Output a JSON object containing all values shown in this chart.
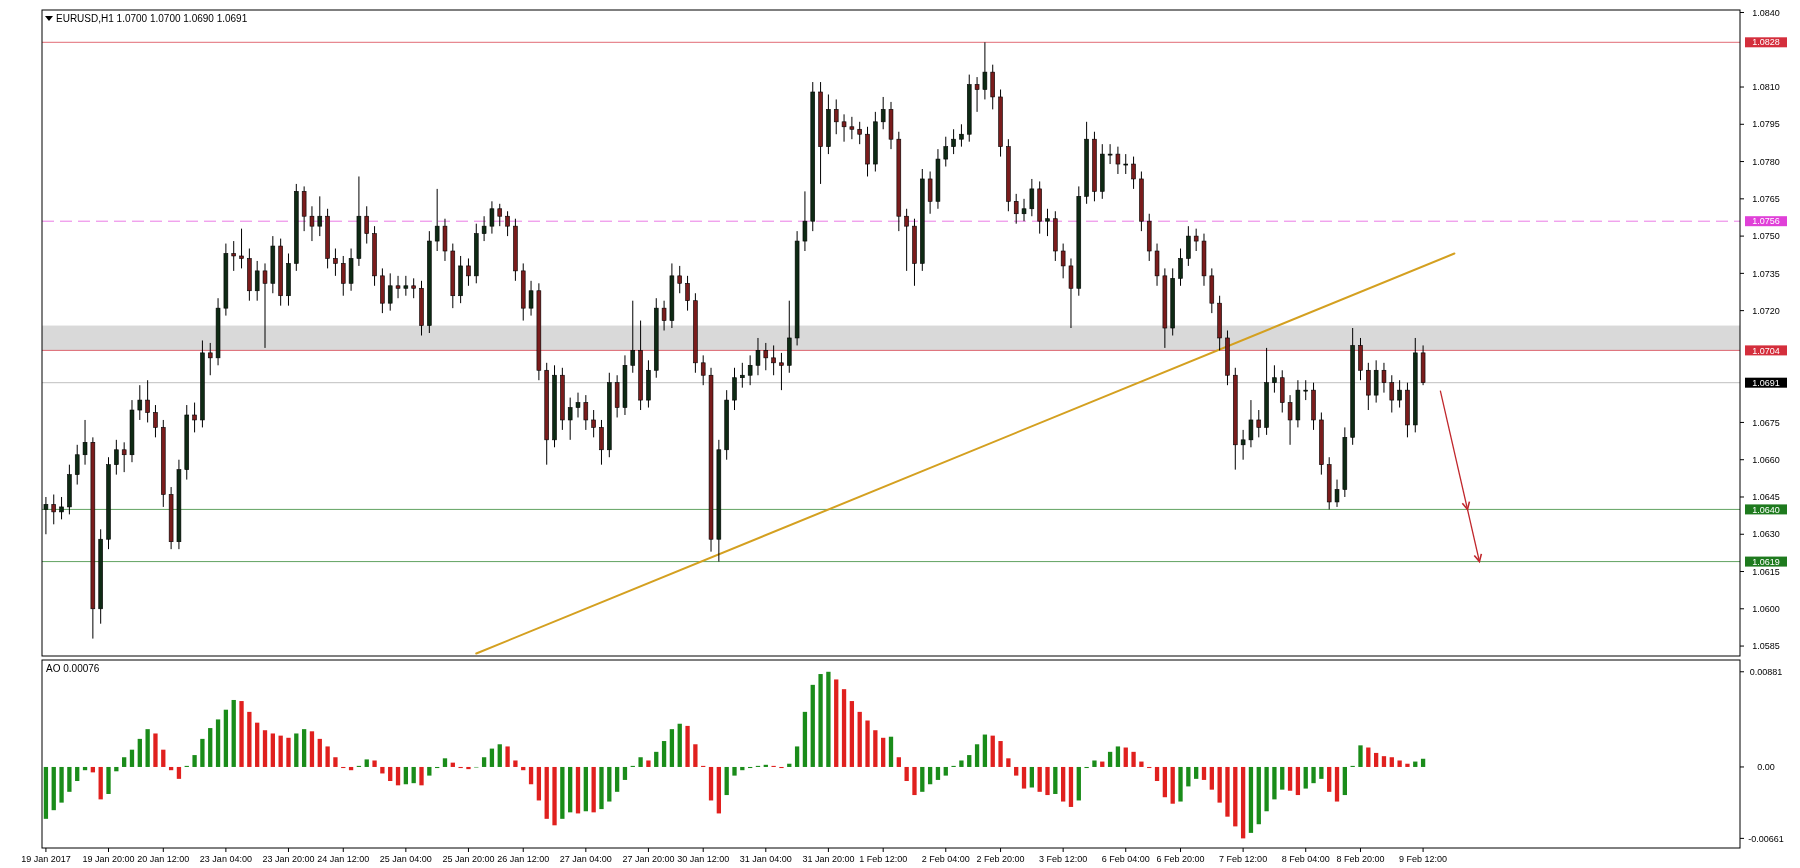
{
  "chart_data": [
    {
      "type": "candlestick",
      "title": "EURUSD,H1  1.0700 1.0700 1.0690 1.0691",
      "categories": [
        null,
        null,
        null,
        null,
        null,
        null,
        null,
        null,
        null,
        null,
        null,
        null,
        null,
        null,
        null,
        null,
        null,
        null,
        null,
        null,
        null,
        null,
        null,
        null,
        null,
        null,
        null,
        null,
        null,
        null,
        null,
        null,
        null,
        null,
        null,
        null,
        null,
        null,
        null,
        null,
        null,
        null,
        null,
        null,
        null,
        null,
        null,
        null,
        null,
        null,
        null,
        null,
        null,
        null,
        null,
        null,
        null,
        null,
        null,
        null,
        null,
        null,
        null,
        null,
        null,
        null,
        null,
        null,
        null,
        null,
        null,
        null,
        null,
        null,
        null,
        null,
        null,
        null,
        null,
        null,
        null,
        null,
        null,
        null,
        null,
        null,
        null,
        null,
        null,
        null,
        null,
        null,
        null,
        null,
        null,
        null,
        null,
        null,
        null,
        null,
        null,
        null,
        null,
        null,
        null,
        null,
        null,
        null,
        null,
        null,
        null,
        null,
        null,
        null,
        null,
        null,
        null,
        null,
        null,
        null,
        null,
        null,
        null,
        null,
        null,
        null,
        null,
        null,
        null,
        null,
        null,
        null,
        null,
        null,
        null,
        null,
        null,
        null,
        null,
        null,
        null,
        null,
        null,
        null,
        null,
        null,
        null,
        null,
        null,
        null,
        null,
        null,
        null,
        null,
        null,
        null,
        null,
        null,
        null,
        null,
        null,
        null,
        null,
        null,
        null,
        null,
        null,
        null,
        null,
        null,
        null,
        null,
        null,
        null,
        null,
        null,
        null,
        null,
        null,
        null,
        null,
        null,
        null,
        null,
        null,
        null,
        null,
        null,
        null,
        null,
        null,
        null,
        null,
        null,
        null,
        null,
        null,
        null,
        null,
        null,
        null,
        null,
        null,
        null,
        null,
        null,
        null,
        null,
        null,
        null,
        null,
        null,
        null,
        null,
        null,
        null,
        null
      ],
      "ohlc": [
        [
          1.064,
          1.0645,
          1.063,
          1.0642
        ],
        [
          1.0642,
          1.0646,
          1.0634,
          1.0639
        ],
        [
          1.0639,
          1.0645,
          1.0636,
          1.0641
        ],
        [
          1.0641,
          1.0658,
          1.0638,
          1.0654
        ],
        [
          1.0654,
          1.0666,
          1.065,
          1.0662
        ],
        [
          1.0662,
          1.0676,
          1.0658,
          1.0667
        ],
        [
          1.0667,
          1.0669,
          1.0588,
          1.06
        ],
        [
          1.06,
          1.0632,
          1.0594,
          1.0628
        ],
        [
          1.0628,
          1.0661,
          1.0624,
          1.0658
        ],
        [
          1.0658,
          1.0668,
          1.0654,
          1.0664
        ],
        [
          1.0664,
          1.0667,
          1.0655,
          1.0662
        ],
        [
          1.0662,
          1.0684,
          1.0659,
          1.068
        ],
        [
          1.068,
          1.069,
          1.0676,
          1.0684
        ],
        [
          1.0684,
          1.0692,
          1.0675,
          1.0679
        ],
        [
          1.0679,
          1.0682,
          1.0669,
          1.0673
        ],
        [
          1.0673,
          1.0676,
          1.0641,
          1.0646
        ],
        [
          1.0646,
          1.0649,
          1.0624,
          1.0627
        ],
        [
          1.0627,
          1.066,
          1.0624,
          1.0656
        ],
        [
          1.0656,
          1.0682,
          1.0652,
          1.0678
        ],
        [
          1.0678,
          1.0683,
          1.0671,
          1.0676
        ],
        [
          1.0676,
          1.0708,
          1.0673,
          1.0703
        ],
        [
          1.0703,
          1.0707,
          1.0694,
          1.0701
        ],
        [
          1.0701,
          1.0725,
          1.0698,
          1.0721
        ],
        [
          1.0721,
          1.0747,
          1.0718,
          1.0743
        ],
        [
          1.0743,
          1.0748,
          1.0736,
          1.0742
        ],
        [
          1.0742,
          1.0753,
          1.0737,
          1.0741
        ],
        [
          1.0741,
          1.0745,
          1.0724,
          1.0728
        ],
        [
          1.0728,
          1.074,
          1.0724,
          1.0736
        ],
        [
          1.0736,
          1.0739,
          1.0705,
          1.0731
        ],
        [
          1.0731,
          1.075,
          1.0727,
          1.0746
        ],
        [
          1.0746,
          1.0749,
          1.0722,
          1.0726
        ],
        [
          1.0726,
          1.0743,
          1.0722,
          1.0739
        ],
        [
          1.0739,
          1.0771,
          1.0736,
          1.0768
        ],
        [
          1.0768,
          1.077,
          1.0752,
          1.0758
        ],
        [
          1.0758,
          1.0762,
          1.0748,
          1.0754
        ],
        [
          1.0754,
          1.0766,
          1.075,
          1.0758
        ],
        [
          1.0758,
          1.0761,
          1.0737,
          1.0741
        ],
        [
          1.0741,
          1.0745,
          1.0734,
          1.0739
        ],
        [
          1.0739,
          1.0742,
          1.0726,
          1.0731
        ],
        [
          1.0731,
          1.0745,
          1.0728,
          1.0741
        ],
        [
          1.0741,
          1.0774,
          1.0738,
          1.0758
        ],
        [
          1.0758,
          1.0762,
          1.0747,
          1.0751
        ],
        [
          1.0751,
          1.0754,
          1.073,
          1.0734
        ],
        [
          1.0734,
          1.0737,
          1.0719,
          1.0723
        ],
        [
          1.0723,
          1.0735,
          1.072,
          1.073
        ],
        [
          1.073,
          1.0734,
          1.0725,
          1.0729
        ],
        [
          1.0729,
          1.0734,
          1.0726,
          1.073
        ],
        [
          1.073,
          1.0733,
          1.0725,
          1.0729
        ],
        [
          1.0729,
          1.0732,
          1.071,
          1.0714
        ],
        [
          1.0714,
          1.0752,
          1.0711,
          1.0748
        ],
        [
          1.0748,
          1.0769,
          1.0744,
          1.0754
        ],
        [
          1.0754,
          1.0757,
          1.074,
          1.0744
        ],
        [
          1.0744,
          1.0747,
          1.0721,
          1.0726
        ],
        [
          1.0726,
          1.0742,
          1.0723,
          1.0738
        ],
        [
          1.0738,
          1.0741,
          1.073,
          1.0734
        ],
        [
          1.0734,
          1.0755,
          1.0731,
          1.0751
        ],
        [
          1.0751,
          1.0758,
          1.0748,
          1.0754
        ],
        [
          1.0754,
          1.0764,
          1.0751,
          1.0761
        ],
        [
          1.0761,
          1.0763,
          1.0754,
          1.0758
        ],
        [
          1.0758,
          1.076,
          1.075,
          1.0754
        ],
        [
          1.0754,
          1.0757,
          1.0732,
          1.0736
        ],
        [
          1.0736,
          1.0739,
          1.0716,
          1.0721
        ],
        [
          1.0721,
          1.0732,
          1.0718,
          1.0728
        ],
        [
          1.0728,
          1.0731,
          1.0692,
          1.0696
        ],
        [
          1.0696,
          1.0699,
          1.0658,
          1.0668
        ],
        [
          1.0668,
          1.0698,
          1.0665,
          1.0694
        ],
        [
          1.0694,
          1.0697,
          1.0672,
          1.0676
        ],
        [
          1.0676,
          1.0685,
          1.0668,
          1.0681
        ],
        [
          1.0681,
          1.0687,
          1.0677,
          1.0683
        ],
        [
          1.0683,
          1.0686,
          1.0672,
          1.0676
        ],
        [
          1.0676,
          1.068,
          1.0669,
          1.0673
        ],
        [
          1.0673,
          1.0676,
          1.0658,
          1.0664
        ],
        [
          1.0664,
          1.0695,
          1.0661,
          1.0691
        ],
        [
          1.0691,
          1.0694,
          1.0677,
          1.0681
        ],
        [
          1.0681,
          1.0702,
          1.0678,
          1.0698
        ],
        [
          1.0698,
          1.0724,
          1.0695,
          1.0704
        ],
        [
          1.0704,
          1.0716,
          1.068,
          1.0684
        ],
        [
          1.0684,
          1.07,
          1.0681,
          1.0696
        ],
        [
          1.0696,
          1.0725,
          1.0693,
          1.0721
        ],
        [
          1.0721,
          1.0724,
          1.0712,
          1.0716
        ],
        [
          1.0716,
          1.0739,
          1.0713,
          1.0734
        ],
        [
          1.0734,
          1.0738,
          1.0727,
          1.0731
        ],
        [
          1.0731,
          1.0734,
          1.072,
          1.0724
        ],
        [
          1.0724,
          1.0727,
          1.0695,
          1.0699
        ],
        [
          1.0699,
          1.0702,
          1.069,
          1.0694
        ],
        [
          1.0694,
          1.0697,
          1.0623,
          1.0628
        ],
        [
          1.0628,
          1.0668,
          1.0619,
          1.0664
        ],
        [
          1.0664,
          1.0688,
          1.066,
          1.0684
        ],
        [
          1.0684,
          1.0697,
          1.068,
          1.0693
        ],
        [
          1.0693,
          1.0699,
          1.0689,
          1.0694
        ],
        [
          1.0694,
          1.0702,
          1.069,
          1.0698
        ],
        [
          1.0698,
          1.0709,
          1.0694,
          1.0704
        ],
        [
          1.0704,
          1.0707,
          1.0696,
          1.0701
        ],
        [
          1.0701,
          1.0706,
          1.0694,
          1.0699
        ],
        [
          1.0699,
          1.0703,
          1.0688,
          1.0698
        ],
        [
          1.0698,
          1.0724,
          1.0695,
          1.0709
        ],
        [
          1.0709,
          1.0752,
          1.0706,
          1.0748
        ],
        [
          1.0748,
          1.0768,
          1.0744,
          1.0756
        ],
        [
          1.0756,
          1.0812,
          1.0752,
          1.0808
        ],
        [
          1.0808,
          1.0812,
          1.0771,
          1.0786
        ],
        [
          1.0786,
          1.0807,
          1.0783,
          1.0801
        ],
        [
          1.0801,
          1.0805,
          1.0791,
          1.0796
        ],
        [
          1.0796,
          1.0799,
          1.0788,
          1.0794
        ],
        [
          1.0794,
          1.0798,
          1.0789,
          1.0793
        ],
        [
          1.0793,
          1.0796,
          1.0787,
          1.0791
        ],
        [
          1.0791,
          1.0794,
          1.0774,
          1.0779
        ],
        [
          1.0779,
          1.08,
          1.0776,
          1.0796
        ],
        [
          1.0796,
          1.0806,
          1.0793,
          1.0801
        ],
        [
          1.0801,
          1.0804,
          1.0785,
          1.0789
        ],
        [
          1.0789,
          1.0792,
          1.0752,
          1.0758
        ],
        [
          1.0758,
          1.0761,
          1.0736,
          1.0754
        ],
        [
          1.0754,
          1.0757,
          1.073,
          1.0739
        ],
        [
          1.0739,
          1.0777,
          1.0736,
          1.0773
        ],
        [
          1.0773,
          1.0776,
          1.0759,
          1.0764
        ],
        [
          1.0764,
          1.0785,
          1.0761,
          1.0781
        ],
        [
          1.0781,
          1.079,
          1.0778,
          1.0786
        ],
        [
          1.0786,
          1.0793,
          1.0783,
          1.0789
        ],
        [
          1.0789,
          1.0795,
          1.0786,
          1.0791
        ],
        [
          1.0791,
          1.0815,
          1.0788,
          1.0811
        ],
        [
          1.0811,
          1.0814,
          1.08,
          1.0809
        ],
        [
          1.0809,
          1.0828,
          1.0805,
          1.0816
        ],
        [
          1.0816,
          1.0819,
          1.0801,
          1.0806
        ],
        [
          1.0806,
          1.0809,
          1.0782,
          1.0786
        ],
        [
          1.0786,
          1.0789,
          1.076,
          1.0764
        ],
        [
          1.0764,
          1.0767,
          1.0755,
          1.0759
        ],
        [
          1.0759,
          1.0765,
          1.0756,
          1.0761
        ],
        [
          1.0761,
          1.0773,
          1.0758,
          1.0769
        ],
        [
          1.0769,
          1.0772,
          1.0751,
          1.0756
        ],
        [
          1.0756,
          1.0761,
          1.075,
          1.0757
        ],
        [
          1.0757,
          1.076,
          1.074,
          1.0744
        ],
        [
          1.0744,
          1.0747,
          1.0733,
          1.0738
        ],
        [
          1.0738,
          1.0741,
          1.0713,
          1.0729
        ],
        [
          1.0729,
          1.077,
          1.0726,
          1.0766
        ],
        [
          1.0766,
          1.0796,
          1.0763,
          1.0789
        ],
        [
          1.0789,
          1.0792,
          1.0764,
          1.0768
        ],
        [
          1.0768,
          1.0787,
          1.0765,
          1.0783
        ],
        [
          1.0783,
          1.0787,
          1.0779,
          1.0783
        ],
        [
          1.0783,
          1.0786,
          1.0775,
          1.0779
        ],
        [
          1.0779,
          1.0783,
          1.0775,
          1.0779
        ],
        [
          1.0779,
          1.0782,
          1.0769,
          1.0773
        ],
        [
          1.0773,
          1.0776,
          1.0752,
          1.0756
        ],
        [
          1.0756,
          1.0759,
          1.074,
          1.0744
        ],
        [
          1.0744,
          1.0747,
          1.073,
          1.0734
        ],
        [
          1.0734,
          1.0737,
          1.0705,
          1.0713
        ],
        [
          1.0713,
          1.0737,
          1.071,
          1.0733
        ],
        [
          1.0733,
          1.0745,
          1.073,
          1.0741
        ],
        [
          1.0741,
          1.0754,
          1.0738,
          1.075
        ],
        [
          1.075,
          1.0753,
          1.0744,
          1.0748
        ],
        [
          1.0748,
          1.0751,
          1.073,
          1.0734
        ],
        [
          1.0734,
          1.0737,
          1.0719,
          1.0723
        ],
        [
          1.0723,
          1.0726,
          1.0704,
          1.0709
        ],
        [
          1.0709,
          1.0712,
          1.069,
          1.0694
        ],
        [
          1.0694,
          1.0697,
          1.0656,
          1.0666
        ],
        [
          1.0666,
          1.0672,
          1.066,
          1.0668
        ],
        [
          1.0668,
          1.0684,
          1.0665,
          1.0676
        ],
        [
          1.0676,
          1.068,
          1.0669,
          1.0673
        ],
        [
          1.0673,
          1.0705,
          1.067,
          1.0691
        ],
        [
          1.0691,
          1.0698,
          1.0687,
          1.0693
        ],
        [
          1.0693,
          1.0696,
          1.0679,
          1.0683
        ],
        [
          1.0683,
          1.0686,
          1.0666,
          1.0676
        ],
        [
          1.0676,
          1.0692,
          1.0673,
          1.0688
        ],
        [
          1.0688,
          1.0692,
          1.0684,
          1.0688
        ],
        [
          1.0688,
          1.0691,
          1.0672,
          1.0676
        ],
        [
          1.0676,
          1.0679,
          1.0654,
          1.0658
        ],
        [
          1.0658,
          1.0661,
          1.064,
          1.0643
        ],
        [
          1.0643,
          1.0652,
          1.0641,
          1.0648
        ],
        [
          1.0648,
          1.0673,
          1.0645,
          1.0669
        ],
        [
          1.0669,
          1.0713,
          1.0666,
          1.0706
        ],
        [
          1.0706,
          1.0709,
          1.0692,
          1.0696
        ],
        [
          1.0696,
          1.0699,
          1.068,
          1.0686
        ],
        [
          1.0686,
          1.07,
          1.0683,
          1.0696
        ],
        [
          1.0696,
          1.0699,
          1.0687,
          1.0691
        ],
        [
          1.0691,
          1.0694,
          1.0679,
          1.0684
        ],
        [
          1.0684,
          1.0692,
          1.0681,
          1.0688
        ],
        [
          1.0688,
          1.0691,
          1.0669,
          1.0674
        ],
        [
          1.0674,
          1.0709,
          1.0671,
          1.0703
        ],
        [
          1.0703,
          1.0706,
          1.069,
          1.0691
        ],
        null,
        null,
        null,
        null,
        null,
        null,
        null,
        null,
        null,
        null,
        null,
        null,
        null,
        null,
        null,
        null,
        null,
        null,
        null,
        null,
        null,
        null,
        null,
        null,
        null,
        null,
        null,
        null,
        null,
        null,
        null,
        null,
        null,
        null,
        null,
        null,
        null,
        null,
        null,
        null
      ],
      "series": [
        {
          "type": "line",
          "values": [
            null,
            null,
            null,
            null,
            null,
            null,
            null,
            null,
            null,
            null,
            null,
            null,
            null,
            null,
            null,
            null,
            null,
            null,
            null,
            null,
            null,
            null,
            null,
            null,
            null,
            null,
            null,
            null,
            null,
            null,
            null,
            null,
            null,
            null,
            null,
            null,
            null,
            null,
            null,
            null,
            null,
            null,
            null,
            null,
            null,
            null,
            null,
            null,
            null,
            null,
            null,
            null,
            null,
            null,
            null,
            1.0582,
            null,
            null,
            null,
            null,
            null,
            null,
            null,
            null,
            null,
            null,
            null,
            null,
            null,
            null,
            null,
            null,
            null,
            null,
            null,
            null,
            null,
            null,
            null,
            null,
            null,
            null,
            null,
            null,
            null,
            null,
            null,
            null,
            null,
            null,
            null,
            null,
            null,
            null,
            null,
            null,
            null,
            null,
            null,
            null,
            null,
            null,
            null,
            null,
            null,
            null,
            null,
            null,
            null,
            null,
            null,
            null,
            null,
            null,
            null,
            null,
            null,
            null,
            null,
            null,
            null,
            null,
            null,
            null,
            null,
            null,
            null,
            null,
            null,
            null,
            null,
            null,
            null,
            null,
            null,
            null,
            null,
            null,
            null,
            null,
            null,
            null,
            null,
            null,
            null,
            null,
            null,
            null,
            null,
            null,
            null,
            null,
            null,
            null,
            null,
            null,
            null,
            null,
            null,
            null,
            null,
            null,
            null,
            null,
            null,
            null,
            null,
            null,
            null,
            null,
            null,
            null,
            null,
            null,
            null,
            null,
            null,
            null,
            null,
            null,
            1.0743,
            null,
            null,
            null,
            null,
            null,
            null,
            null,
            null,
            null,
            null,
            null,
            null,
            null,
            null,
            null,
            null,
            null,
            null,
            null,
            null,
            null,
            null,
            null,
            null,
            null,
            null,
            null,
            null,
            null,
            null,
            null,
            null,
            null,
            null,
            null,
            null
          ],
          "color": "#d4a020"
        }
      ],
      "ylim": [
        1.0581,
        1.0841
      ],
      "yticks": [
        1.0585,
        {
          "value": 1.06,
          "label": "1.0600"
        },
        1.0615,
        {
          "value": 1.063,
          "label": "1.0630"
        },
        1.0645,
        {
          "value": 1.066,
          "label": "1.0660"
        },
        1.0675,
        {
          "value": 1.072,
          "label": "1.0720"
        },
        1.0735,
        {
          "value": 1.075,
          "label": "1.0750"
        },
        1.0765,
        {
          "value": 1.078,
          "label": "1.0780"
        },
        1.0795,
        {
          "value": 1.081,
          "label": "1.0810"
        },
        {
          "value": 1.084,
          "label": "1.0840"
        }
      ],
      "ref_lines": [
        {
          "axis": "y",
          "value": 1.0828,
          "label": "1.0828",
          "color": "#d42e3c"
        },
        {
          "axis": "y",
          "value": 1.0756,
          "label": "1.0756",
          "color": "#e040d8",
          "line_style": "dashed"
        },
        {
          "axis": "y",
          "value": 1.0704,
          "label": "1.0704",
          "color": "#d42e3c"
        },
        {
          "axis": "y",
          "value": 1.0691,
          "label": "1.0691",
          "color": "#000000"
        },
        {
          "axis": "y",
          "value": 1.064,
          "label": "1.0640",
          "color": "#1e7a1e"
        },
        {
          "axis": "y",
          "value": 1.0619,
          "label": "1.0619",
          "color": "#1e7a1e"
        }
      ],
      "bands": [
        {
          "axis": "y",
          "from": 1.0704,
          "to": 1.0714,
          "color": "#d9d9d9"
        }
      ],
      "tick_labels": "y"
    },
    {
      "type": "bar",
      "title": "AO 0.00076",
      "categories": [
        "19 Jan 2017",
        null,
        null,
        null,
        null,
        null,
        null,
        null,
        "19 Jan 20:00",
        null,
        null,
        null,
        null,
        null,
        null,
        "20 Jan 12:00",
        null,
        null,
        null,
        null,
        null,
        null,
        null,
        "23 Jan 04:00",
        null,
        null,
        null,
        null,
        null,
        null,
        null,
        "23 Jan 20:00",
        null,
        null,
        null,
        null,
        null,
        null,
        "24 Jan 12:00",
        null,
        null,
        null,
        null,
        null,
        null,
        null,
        "25 Jan 04:00",
        null,
        null,
        null,
        null,
        null,
        null,
        null,
        "25 Jan 20:00",
        null,
        null,
        null,
        null,
        null,
        null,
        "26 Jan 12:00",
        null,
        null,
        null,
        null,
        null,
        null,
        null,
        "27 Jan 04:00",
        null,
        null,
        null,
        null,
        null,
        null,
        null,
        "27 Jan 20:00",
        null,
        null,
        null,
        null,
        null,
        null,
        "30 Jan 12:00",
        null,
        null,
        null,
        null,
        null,
        null,
        null,
        "31 Jan 04:00",
        null,
        null,
        null,
        null,
        null,
        null,
        null,
        "31 Jan 20:00",
        null,
        null,
        null,
        null,
        null,
        null,
        "1 Feb 12:00",
        null,
        null,
        null,
        null,
        null,
        null,
        null,
        "2 Feb 04:00",
        null,
        null,
        null,
        null,
        null,
        null,
        "2 Feb 20:00",
        null,
        null,
        null,
        null,
        null,
        null,
        null,
        "3 Feb 12:00",
        null,
        null,
        null,
        null,
        null,
        null,
        null,
        "6 Feb 04:00",
        null,
        null,
        null,
        null,
        null,
        null,
        "6 Feb 20:00",
        null,
        null,
        null,
        null,
        null,
        null,
        null,
        "7 Feb 12:00",
        null,
        null,
        null,
        null,
        null,
        null,
        null,
        "8 Feb 04:00",
        null,
        null,
        null,
        null,
        null,
        null,
        "8 Feb 20:00",
        null,
        null,
        null,
        null,
        null,
        null,
        null,
        "9 Feb 12:00",
        null,
        null,
        null,
        null,
        null,
        null,
        null,
        null,
        null,
        null,
        null,
        null,
        null,
        null,
        null,
        null,
        null,
        null,
        null,
        null,
        null,
        null,
        null,
        null,
        null,
        null,
        null,
        null,
        null,
        null,
        null,
        null,
        null,
        null,
        null,
        null,
        null,
        null,
        null,
        null
      ],
      "values": [
        -0.0048,
        -0.004,
        -0.0033,
        -0.0023,
        -0.0013,
        -0.0003,
        -0.0005,
        -0.003,
        -0.0025,
        -0.0004,
        0.0009,
        0.0016,
        0.0026,
        0.0035,
        0.0031,
        0.0016,
        -0.0003,
        -0.0011,
        0.0001,
        0.0011,
        0.0026,
        0.0036,
        0.0044,
        0.0053,
        0.0062,
        0.0061,
        0.0051,
        0.0041,
        0.0034,
        0.0031,
        0.0029,
        0.0027,
        0.0031,
        0.0035,
        0.0033,
        0.0026,
        0.0019,
        0.0009,
        -0.0001,
        -0.0003,
        0.0001,
        0.0007,
        0.0006,
        -0.0006,
        -0.0013,
        -0.0017,
        -0.0016,
        -0.0015,
        -0.0017,
        -0.0008,
        -0.0001,
        0.0008,
        0.0004,
        -0.0001,
        -0.0002,
        0,
        0.0009,
        0.0017,
        0.0021,
        0.0019,
        0.0006,
        -0.0003,
        -0.0016,
        -0.0031,
        -0.0048,
        -0.0054,
        -0.0048,
        -0.0042,
        -0.0043,
        -0.0041,
        -0.0042,
        -0.0039,
        -0.0032,
        -0.0023,
        -0.0012,
        0.0001,
        0.0009,
        0.0006,
        0.0014,
        0.0024,
        0.0035,
        0.004,
        0.0038,
        0.0021,
        0.0001,
        -0.0031,
        -0.0043,
        -0.0026,
        -0.0008,
        -0.0003,
        -0.0001,
        0.0001,
        0.0002,
        0.0001,
        -0.0001,
        0.0003,
        0.0019,
        0.0051,
        0.0076,
        0.0086,
        0.00881,
        0.0081,
        0.0072,
        0.0061,
        0.0051,
        0.0043,
        0.0034,
        0.0027,
        0.0028,
        0.0009,
        -0.0013,
        -0.0026,
        -0.0023,
        -0.0016,
        -0.0012,
        -0.0008,
        0.0001,
        0.0006,
        0.0011,
        0.0021,
        0.003,
        0.0029,
        0.0024,
        0.0008,
        -0.0008,
        -0.002,
        -0.0019,
        -0.0023,
        -0.0026,
        -0.0025,
        -0.0032,
        -0.0037,
        -0.0031,
        -0.0001,
        0.0006,
        0.0005,
        0.0014,
        0.0019,
        0.0018,
        0.0014,
        0.0005,
        -0.0001,
        -0.0013,
        -0.0028,
        -0.0034,
        -0.0032,
        -0.0018,
        -0.0011,
        -0.0012,
        -0.0021,
        -0.0033,
        -0.0046,
        -0.0055,
        -0.00661,
        -0.0061,
        -0.0053,
        -0.0041,
        -0.003,
        -0.0021,
        -0.0022,
        -0.0026,
        -0.002,
        -0.0015,
        -0.0011,
        -0.0023,
        -0.0032,
        -0.0026,
        0.0001,
        0.002,
        0.0018,
        0.0013,
        0.001,
        0.0009,
        0.0006,
        0.0003,
        0.0005,
        0.00076,
        null,
        null,
        null,
        null,
        null,
        null,
        null,
        null,
        null,
        null,
        null,
        null,
        null,
        null,
        null,
        null,
        null,
        null,
        null,
        null,
        null,
        null,
        null,
        null,
        null,
        null,
        null,
        null,
        null,
        null,
        null,
        null,
        null,
        null,
        null,
        null,
        null,
        null,
        null,
        null
      ],
      "colors": [
        "#1a8c1a",
        "#1a8c1a",
        "#1a8c1a",
        "#1a8c1a",
        "#1a8c1a",
        "#1a8c1a",
        "#e0201e",
        "#e0201e",
        "#1a8c1a",
        "#1a8c1a",
        "#1a8c1a",
        "#1a8c1a",
        "#1a8c1a",
        "#1a8c1a",
        "#e0201e",
        "#e0201e",
        "#e0201e",
        "#e0201e",
        "#1a8c1a",
        "#1a8c1a",
        "#1a8c1a",
        "#1a8c1a",
        "#1a8c1a",
        "#1a8c1a",
        "#1a8c1a",
        "#e0201e",
        "#e0201e",
        "#e0201e",
        "#e0201e",
        "#e0201e",
        "#e0201e",
        "#e0201e",
        "#1a8c1a",
        "#1a8c1a",
        "#e0201e",
        "#e0201e",
        "#e0201e",
        "#e0201e",
        "#e0201e",
        "#e0201e",
        "#1a8c1a",
        "#1a8c1a",
        "#e0201e",
        "#e0201e",
        "#e0201e",
        "#e0201e",
        "#1a8c1a",
        "#1a8c1a",
        "#e0201e",
        "#1a8c1a",
        "#1a8c1a",
        "#1a8c1a",
        "#e0201e",
        "#e0201e",
        "#e0201e",
        "#1a8c1a",
        "#1a8c1a",
        "#1a8c1a",
        "#1a8c1a",
        "#e0201e",
        "#e0201e",
        "#e0201e",
        "#e0201e",
        "#e0201e",
        "#e0201e",
        "#e0201e",
        "#1a8c1a",
        "#1a8c1a",
        "#e0201e",
        "#1a8c1a",
        "#e0201e",
        "#1a8c1a",
        "#1a8c1a",
        "#1a8c1a",
        "#1a8c1a",
        "#1a8c1a",
        "#1a8c1a",
        "#e0201e",
        "#1a8c1a",
        "#1a8c1a",
        "#1a8c1a",
        "#1a8c1a",
        "#e0201e",
        "#e0201e",
        "#e0201e",
        "#e0201e",
        "#e0201e",
        "#1a8c1a",
        "#1a8c1a",
        "#1a8c1a",
        "#1a8c1a",
        "#1a8c1a",
        "#1a8c1a",
        "#e0201e",
        "#e0201e",
        "#1a8c1a",
        "#1a8c1a",
        "#1a8c1a",
        "#1a8c1a",
        "#1a8c1a",
        "#1a8c1a",
        "#e0201e",
        "#e0201e",
        "#e0201e",
        "#e0201e",
        "#e0201e",
        "#e0201e",
        "#e0201e",
        "#1a8c1a",
        "#e0201e",
        "#e0201e",
        "#e0201e",
        "#1a8c1a",
        "#1a8c1a",
        "#1a8c1a",
        "#1a8c1a",
        "#1a8c1a",
        "#1a8c1a",
        "#1a8c1a",
        "#1a8c1a",
        "#1a8c1a",
        "#e0201e",
        "#e0201e",
        "#e0201e",
        "#e0201e",
        "#e0201e",
        "#1a8c1a",
        "#e0201e",
        "#e0201e",
        "#1a8c1a",
        "#e0201e",
        "#e0201e",
        "#1a8c1a",
        "#1a8c1a",
        "#1a8c1a",
        "#e0201e",
        "#1a8c1a",
        "#1a8c1a",
        "#e0201e",
        "#e0201e",
        "#e0201e",
        "#e0201e",
        "#e0201e",
        "#e0201e",
        "#e0201e",
        "#1a8c1a",
        "#1a8c1a",
        "#1a8c1a",
        "#e0201e",
        "#e0201e",
        "#e0201e",
        "#e0201e",
        "#e0201e",
        "#e0201e",
        "#1a8c1a",
        "#1a8c1a",
        "#1a8c1a",
        "#1a8c1a",
        "#1a8c1a",
        "#e0201e",
        "#e0201e",
        "#1a8c1a",
        "#1a8c1a",
        "#1a8c1a",
        "#e0201e",
        "#e0201e",
        "#1a8c1a",
        "#1a8c1a",
        "#1a8c1a",
        "#e0201e",
        "#e0201e",
        "#e0201e",
        "#e0201e",
        "#e0201e",
        "#e0201e",
        "#1a8c1a",
        "#1a8c1a",
        null,
        null,
        null,
        null,
        null,
        null,
        null,
        null,
        null,
        null,
        null,
        null,
        null,
        null,
        null,
        null,
        null,
        null,
        null,
        null,
        null,
        null,
        null,
        null,
        null,
        null,
        null,
        null,
        null,
        null,
        null,
        null,
        null,
        null,
        null,
        null,
        null,
        null,
        null,
        null
      ],
      "ylim": [
        -0.0075,
        0.0099
      ],
      "yticks": [
        {
          "value": -0.00661,
          "label": "-0.00661"
        },
        {
          "value": 0,
          "label": "0.00"
        },
        {
          "value": 0.00881,
          "label": "0.00881"
        }
      ]
    }
  ]
}
